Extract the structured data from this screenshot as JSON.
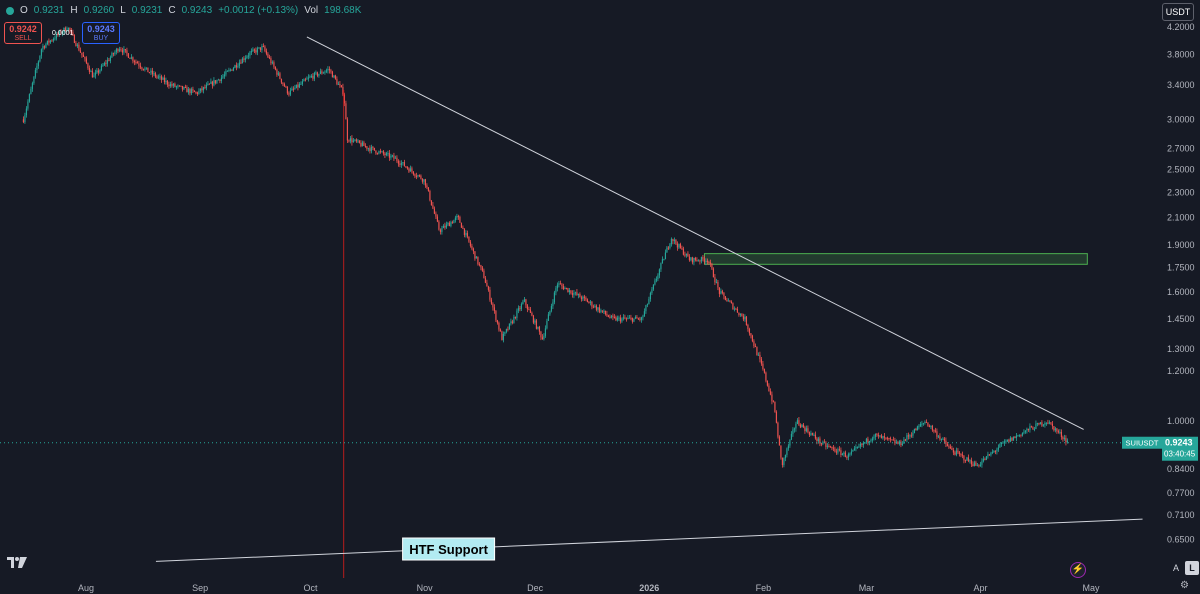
{
  "header": {
    "open_label": "O",
    "open": "0.9231",
    "high_label": "H",
    "high": "0.9260",
    "low_label": "L",
    "low": "0.9231",
    "close_label": "C",
    "close": "0.9243",
    "change": "+0.0012 (+0.13%)",
    "vol_label": "Vol",
    "vol": "198.68K",
    "sell_price": "0.9242",
    "sell_label": "SELL",
    "spread": "0.0001",
    "buy_price": "0.9243",
    "buy_label": "BUY",
    "quote_currency": "USDT"
  },
  "price_tag": {
    "symbol": "SUIUSDT",
    "price": "0.9243",
    "countdown": "03:40:45"
  },
  "annotation": {
    "support_label": "HTF Support"
  },
  "colors": {
    "background": "#161a25",
    "up": "#26a69a",
    "down": "#ef5350",
    "zone_border": "#4caf50",
    "trendline": "#d1d4dc",
    "label_bg": "#b2ebf2"
  },
  "icons": {
    "logo": "tradingview-logo-icon",
    "bolt": "bolt-icon",
    "settings": "gear-icon"
  },
  "controls": {
    "auto_label": "A",
    "log_label": "L"
  },
  "chart_data": {
    "type": "candlestick",
    "scale": "log",
    "grid": false,
    "y_ticks": [
      "4.2000",
      "3.8000",
      "3.4000",
      "3.0000",
      "2.7000",
      "2.5000",
      "2.3000",
      "2.1000",
      "1.9000",
      "1.7500",
      "1.6000",
      "1.4500",
      "1.3000",
      "1.2000",
      "1.0000",
      "0.8400",
      "0.7700",
      "0.7100",
      "0.6500"
    ],
    "x_ticks": [
      "Aug",
      "Sep",
      "Oct",
      "Nov",
      "Dec",
      "2026",
      "Feb",
      "Mar",
      "Apr",
      "May"
    ],
    "approx_closes": [
      {
        "date": "2025-07-15",
        "close": 3.0
      },
      {
        "date": "2025-07-20",
        "close": 3.9
      },
      {
        "date": "2025-07-27",
        "close": 4.2
      },
      {
        "date": "2025-08-03",
        "close": 3.5
      },
      {
        "date": "2025-08-10",
        "close": 3.9
      },
      {
        "date": "2025-08-17",
        "close": 3.6
      },
      {
        "date": "2025-08-24",
        "close": 3.4
      },
      {
        "date": "2025-08-31",
        "close": 3.3
      },
      {
        "date": "2025-09-07",
        "close": 3.5
      },
      {
        "date": "2025-09-14",
        "close": 3.8
      },
      {
        "date": "2025-09-18",
        "close": 3.9
      },
      {
        "date": "2025-09-25",
        "close": 3.3
      },
      {
        "date": "2025-10-01",
        "close": 3.5
      },
      {
        "date": "2025-10-06",
        "close": 3.6
      },
      {
        "date": "2025-10-10",
        "close": 3.3
      },
      {
        "date": "2025-10-11",
        "close": 2.8
      },
      {
        "date": "2025-10-17",
        "close": 2.7
      },
      {
        "date": "2025-10-24",
        "close": 2.6
      },
      {
        "date": "2025-11-01",
        "close": 2.4
      },
      {
        "date": "2025-11-05",
        "close": 2.0
      },
      {
        "date": "2025-11-10",
        "close": 2.1
      },
      {
        "date": "2025-11-17",
        "close": 1.7
      },
      {
        "date": "2025-11-22",
        "close": 1.35
      },
      {
        "date": "2025-11-28",
        "close": 1.55
      },
      {
        "date": "2025-12-03",
        "close": 1.35
      },
      {
        "date": "2025-12-07",
        "close": 1.65
      },
      {
        "date": "2025-12-15",
        "close": 1.55
      },
      {
        "date": "2025-12-22",
        "close": 1.45
      },
      {
        "date": "2025-12-30",
        "close": 1.45
      },
      {
        "date": "2026-01-04",
        "close": 1.75
      },
      {
        "date": "2026-01-07",
        "close": 1.95
      },
      {
        "date": "2026-01-12",
        "close": 1.8
      },
      {
        "date": "2026-01-17",
        "close": 1.8
      },
      {
        "date": "2026-01-20",
        "close": 1.6
      },
      {
        "date": "2026-01-27",
        "close": 1.45
      },
      {
        "date": "2026-02-01",
        "close": 1.2
      },
      {
        "date": "2026-02-04",
        "close": 1.05
      },
      {
        "date": "2026-02-06",
        "close": 0.85
      },
      {
        "date": "2026-02-10",
        "close": 1.0
      },
      {
        "date": "2026-02-17",
        "close": 0.92
      },
      {
        "date": "2026-02-24",
        "close": 0.88
      },
      {
        "date": "2026-03-03",
        "close": 0.95
      },
      {
        "date": "2026-03-10",
        "close": 0.92
      },
      {
        "date": "2026-03-17",
        "close": 1.0
      },
      {
        "date": "2026-03-24",
        "close": 0.9
      },
      {
        "date": "2026-03-31",
        "close": 0.85
      },
      {
        "date": "2026-04-07",
        "close": 0.92
      },
      {
        "date": "2026-04-14",
        "close": 0.97
      },
      {
        "date": "2026-04-19",
        "close": 1.0
      },
      {
        "date": "2026-04-25",
        "close": 0.9243
      }
    ],
    "current_price": 0.9243,
    "resistance_zone": {
      "from": "2026-01-16",
      "to": "2026-04-30",
      "low": 1.77,
      "high": 1.84
    },
    "trendlines": [
      {
        "name": "descending resistance",
        "from": {
          "date": "2025-09-30",
          "price": 4.05
        },
        "to": {
          "date": "2026-04-29",
          "price": 0.97
        }
      },
      {
        "name": "HTF Support",
        "from": {
          "date": "2025-08-20",
          "price": 0.6
        },
        "to": {
          "date": "2026-05-15",
          "price": 0.7
        }
      }
    ],
    "event_line": {
      "date": "2025-10-10"
    }
  }
}
